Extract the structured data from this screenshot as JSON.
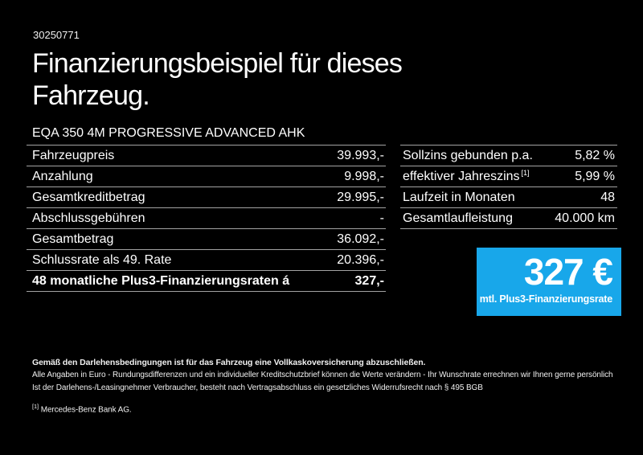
{
  "header": {
    "document_number": "30250771",
    "title_line1": "Finanzierungsbeispiel für dieses",
    "title_line2": "Fahrzeug."
  },
  "vehicle_model": "EQA 350 4M PROGRESSIVE ADVANCED AHK",
  "finance_table": {
    "rows": [
      {
        "label": "Fahrzeugpreis",
        "value": "39.993,-"
      },
      {
        "label": "Anzahlung",
        "value": "9.998,-"
      },
      {
        "label": "Gesamtkreditbetrag",
        "value": "29.995,-"
      },
      {
        "label": "Abschlussgebühren",
        "value": "-"
      },
      {
        "label": "Gesamtbetrag",
        "value": "36.092,-"
      },
      {
        "label": "Schlussrate als 49. Rate",
        "value": "20.396,-"
      },
      {
        "label": "48 monatliche Plus3-Finanzierungsraten á",
        "value": "327,-"
      }
    ]
  },
  "conditions_table": {
    "rows": [
      {
        "label": "Sollzins gebunden p.a.",
        "value": "5,82 %"
      },
      {
        "label": "effektiver Jahreszins",
        "label_sup": "[1]",
        "value": "5,99 %"
      },
      {
        "label": "Laufzeit in Monaten",
        "value": "48"
      },
      {
        "label": "Gesamtlaufleistung",
        "value": "40.000 km"
      }
    ]
  },
  "rate_box": {
    "amount": "327 €",
    "caption": "mtl. Plus3-Finanzierungsrate",
    "background_color": "#18a7ea"
  },
  "disclaimer": {
    "line1": "Gemäß den Darlehensbedingungen ist für das Fahrzeug eine Vollkaskoversicherung abzuschließen.",
    "line2": "Alle Angaben in Euro - Rundungsdifferenzen und ein individueller Kreditschutzbrief können die Werte verändern - Ihr Wunschrate errechnen wir Ihnen gerne persönlich",
    "line3": "Ist der Darlehens-/Leasingnehmer Verbraucher, besteht nach Vertragsabschluss ein gesetzliches Widerrufsrecht nach § 495 BGB",
    "footnote_marker": "[1]",
    "footnote_text": "Mercedes-Benz Bank AG."
  }
}
